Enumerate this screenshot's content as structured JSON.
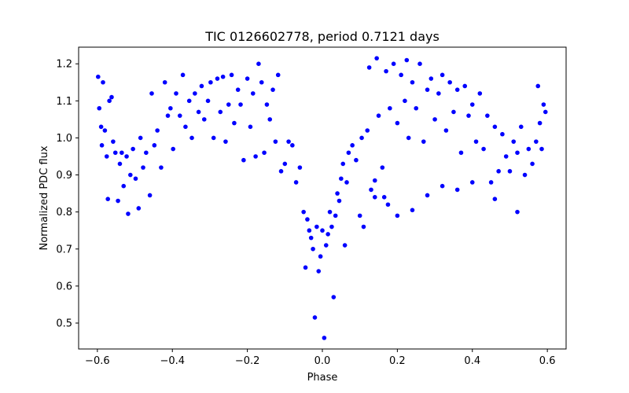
{
  "chart_data": {
    "type": "scatter",
    "title": "TIC 0126602778, period 0.7121 days",
    "xlabel": "Phase",
    "ylabel": "Normalized PDC flux",
    "xlim": [
      -0.65,
      0.65
    ],
    "ylim": [
      0.43,
      1.245
    ],
    "xticks": [
      -0.6,
      -0.4,
      -0.2,
      0.0,
      0.2,
      0.4,
      0.6
    ],
    "xtick_labels": [
      "−0.6",
      "−0.4",
      "−0.2",
      "0.0",
      "0.2",
      "0.4",
      "0.6"
    ],
    "yticks": [
      0.5,
      0.6,
      0.7,
      0.8,
      0.9,
      1.0,
      1.1,
      1.2
    ],
    "ytick_labels": [
      "0.5",
      "0.6",
      "0.7",
      "0.8",
      "0.9",
      "1.0",
      "1.1",
      "1.2"
    ],
    "grid": false,
    "marker_color": "#0000ff",
    "series": [
      {
        "points": [
          [
            -0.598,
            1.165
          ],
          [
            -0.595,
            1.08
          ],
          [
            -0.59,
            1.03
          ],
          [
            -0.588,
            0.98
          ],
          [
            -0.585,
            1.15
          ],
          [
            -0.58,
            1.02
          ],
          [
            -0.575,
            0.95
          ],
          [
            -0.572,
            0.835
          ],
          [
            -0.568,
            1.1
          ],
          [
            -0.562,
            1.11
          ],
          [
            -0.558,
            0.99
          ],
          [
            -0.552,
            0.96
          ],
          [
            -0.545,
            0.83
          ],
          [
            -0.54,
            0.93
          ],
          [
            -0.535,
            0.96
          ],
          [
            -0.53,
            0.87
          ],
          [
            -0.522,
            0.95
          ],
          [
            -0.518,
            0.795
          ],
          [
            -0.512,
            0.9
          ],
          [
            -0.505,
            0.97
          ],
          [
            -0.498,
            0.89
          ],
          [
            -0.49,
            0.81
          ],
          [
            -0.485,
            1.0
          ],
          [
            -0.478,
            0.92
          ],
          [
            -0.47,
            0.96
          ],
          [
            -0.46,
            0.845
          ],
          [
            -0.455,
            1.12
          ],
          [
            -0.448,
            0.98
          ],
          [
            -0.44,
            1.02
          ],
          [
            -0.43,
            0.92
          ],
          [
            -0.42,
            1.15
          ],
          [
            -0.412,
            1.06
          ],
          [
            -0.405,
            1.08
          ],
          [
            -0.398,
            0.97
          ],
          [
            -0.39,
            1.12
          ],
          [
            -0.38,
            1.06
          ],
          [
            -0.372,
            1.17
          ],
          [
            -0.365,
            1.03
          ],
          [
            -0.355,
            1.1
          ],
          [
            -0.348,
            1.0
          ],
          [
            -0.34,
            1.12
          ],
          [
            -0.33,
            1.07
          ],
          [
            -0.322,
            1.14
          ],
          [
            -0.315,
            1.05
          ],
          [
            -0.305,
            1.1
          ],
          [
            -0.298,
            1.15
          ],
          [
            -0.29,
            1.0
          ],
          [
            -0.28,
            1.16
          ],
          [
            -0.272,
            1.07
          ],
          [
            -0.265,
            1.165
          ],
          [
            -0.258,
            0.99
          ],
          [
            -0.25,
            1.09
          ],
          [
            -0.242,
            1.17
          ],
          [
            -0.235,
            1.04
          ],
          [
            -0.225,
            1.13
          ],
          [
            -0.218,
            1.09
          ],
          [
            -0.21,
            0.94
          ],
          [
            -0.2,
            1.16
          ],
          [
            -0.192,
            1.03
          ],
          [
            -0.185,
            1.12
          ],
          [
            -0.178,
            0.95
          ],
          [
            -0.17,
            1.2
          ],
          [
            -0.162,
            1.15
          ],
          [
            -0.155,
            0.96
          ],
          [
            -0.148,
            1.09
          ],
          [
            -0.14,
            1.05
          ],
          [
            -0.132,
            1.13
          ],
          [
            -0.125,
            0.99
          ],
          [
            -0.118,
            1.17
          ],
          [
            -0.11,
            0.91
          ],
          [
            -0.1,
            0.93
          ],
          [
            -0.09,
            0.99
          ],
          [
            -0.08,
            0.98
          ],
          [
            -0.07,
            0.88
          ],
          [
            -0.06,
            0.92
          ],
          [
            -0.05,
            0.8
          ],
          [
            -0.045,
            0.65
          ],
          [
            -0.04,
            0.78
          ],
          [
            -0.035,
            0.75
          ],
          [
            -0.03,
            0.73
          ],
          [
            -0.025,
            0.7
          ],
          [
            -0.02,
            0.515
          ],
          [
            -0.015,
            0.76
          ],
          [
            -0.01,
            0.64
          ],
          [
            -0.005,
            0.68
          ],
          [
            0.0,
            0.75
          ],
          [
            0.005,
            0.46
          ],
          [
            0.01,
            0.71
          ],
          [
            0.015,
            0.74
          ],
          [
            0.02,
            0.8
          ],
          [
            0.025,
            0.76
          ],
          [
            0.03,
            0.57
          ],
          [
            0.035,
            0.79
          ],
          [
            0.04,
            0.85
          ],
          [
            0.045,
            0.83
          ],
          [
            0.05,
            0.89
          ],
          [
            0.055,
            0.93
          ],
          [
            0.06,
            0.71
          ],
          [
            0.065,
            0.88
          ],
          [
            0.07,
            0.96
          ],
          [
            0.08,
            0.98
          ],
          [
            0.09,
            0.94
          ],
          [
            0.1,
            0.79
          ],
          [
            0.105,
            1.0
          ],
          [
            0.11,
            0.76
          ],
          [
            0.12,
            1.02
          ],
          [
            0.125,
            1.19
          ],
          [
            0.13,
            0.86
          ],
          [
            0.14,
            0.84
          ],
          [
            0.145,
            1.215
          ],
          [
            0.15,
            1.06
          ],
          [
            0.16,
            0.92
          ],
          [
            0.17,
            1.18
          ],
          [
            0.175,
            0.82
          ],
          [
            0.18,
            1.08
          ],
          [
            0.19,
            1.2
          ],
          [
            0.2,
            1.04
          ],
          [
            0.21,
            1.17
          ],
          [
            0.22,
            1.1
          ],
          [
            0.225,
            1.21
          ],
          [
            0.23,
            1.0
          ],
          [
            0.24,
            1.15
          ],
          [
            0.25,
            1.08
          ],
          [
            0.26,
            1.2
          ],
          [
            0.27,
            0.99
          ],
          [
            0.28,
            1.13
          ],
          [
            0.29,
            1.16
          ],
          [
            0.3,
            1.05
          ],
          [
            0.31,
            1.12
          ],
          [
            0.32,
            1.17
          ],
          [
            0.33,
            1.02
          ],
          [
            0.34,
            1.15
          ],
          [
            0.35,
            1.07
          ],
          [
            0.36,
            1.13
          ],
          [
            0.37,
            0.96
          ],
          [
            0.38,
            1.14
          ],
          [
            0.39,
            1.06
          ],
          [
            0.4,
            1.09
          ],
          [
            0.41,
            0.99
          ],
          [
            0.42,
            1.12
          ],
          [
            0.43,
            0.97
          ],
          [
            0.44,
            1.06
          ],
          [
            0.45,
            0.88
          ],
          [
            0.46,
            1.03
          ],
          [
            0.47,
            0.91
          ],
          [
            0.48,
            1.01
          ],
          [
            0.49,
            0.95
          ],
          [
            0.5,
            0.91
          ],
          [
            0.51,
            0.99
          ],
          [
            0.52,
            0.96
          ],
          [
            0.53,
            1.03
          ],
          [
            0.54,
            0.9
          ],
          [
            0.55,
            0.97
          ],
          [
            0.56,
            0.93
          ],
          [
            0.57,
            0.99
          ],
          [
            0.575,
            1.14
          ],
          [
            0.58,
            1.04
          ],
          [
            0.585,
            0.97
          ],
          [
            0.59,
            1.09
          ],
          [
            0.595,
            1.07
          ],
          [
            0.14,
            0.885
          ],
          [
            0.165,
            0.84
          ],
          [
            0.2,
            0.79
          ],
          [
            0.24,
            0.805
          ],
          [
            0.28,
            0.845
          ],
          [
            0.32,
            0.87
          ],
          [
            0.36,
            0.86
          ],
          [
            0.4,
            0.88
          ],
          [
            0.46,
            0.835
          ],
          [
            0.52,
            0.8
          ]
        ]
      }
    ]
  }
}
